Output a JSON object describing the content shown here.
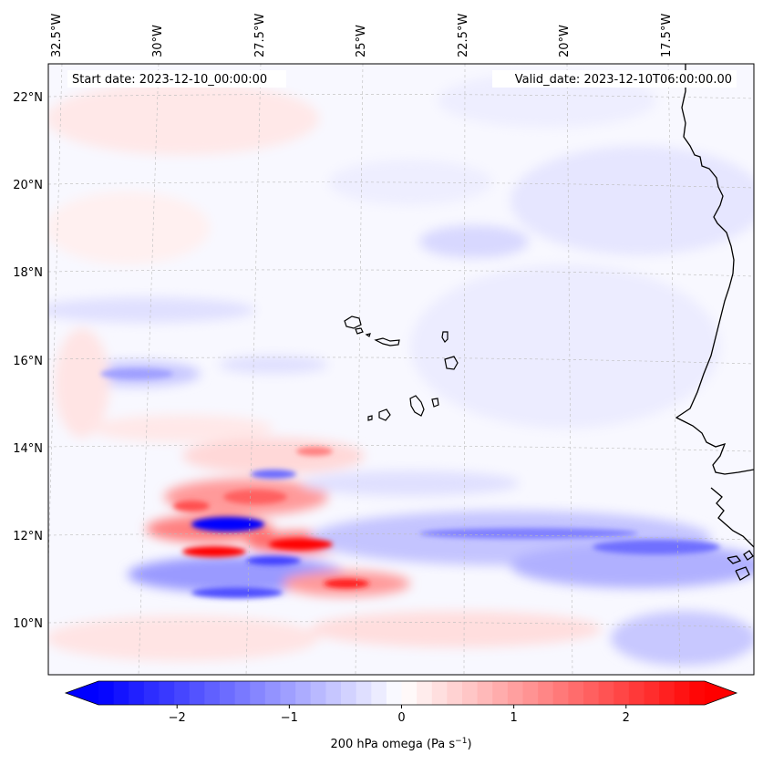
{
  "map": {
    "start_label": "Start date: 2023-12-10_00:00:00",
    "valid_label": "Valid_date: 2023-12-10T06:00:00.00",
    "lon_labels": [
      "32.5°W",
      "30°W",
      "27.5°W",
      "25°W",
      "22.5°W",
      "20°W",
      "17.5°W"
    ],
    "lat_labels": [
      "22°N",
      "20°N",
      "18°N",
      "16°N",
      "14°N",
      "12°N",
      "10°N"
    ],
    "field": "200 hPa omega",
    "units": "(Pa s",
    "units_exp": "−1",
    "units_close": ")"
  },
  "colorbar": {
    "ticks": [
      "−2",
      "−1",
      "0",
      "1",
      "2"
    ],
    "tick_values": [
      -2,
      -1,
      0,
      1,
      2
    ],
    "range": [
      -2.7,
      2.7
    ],
    "extend": "both",
    "colormap": "bwr",
    "colors": {
      "negative": "#0000ff",
      "zero": "#ffffff",
      "positive": "#ff0000"
    }
  },
  "colors": {
    "coastline": "#000000",
    "gridline": "#bbbbbb"
  }
}
